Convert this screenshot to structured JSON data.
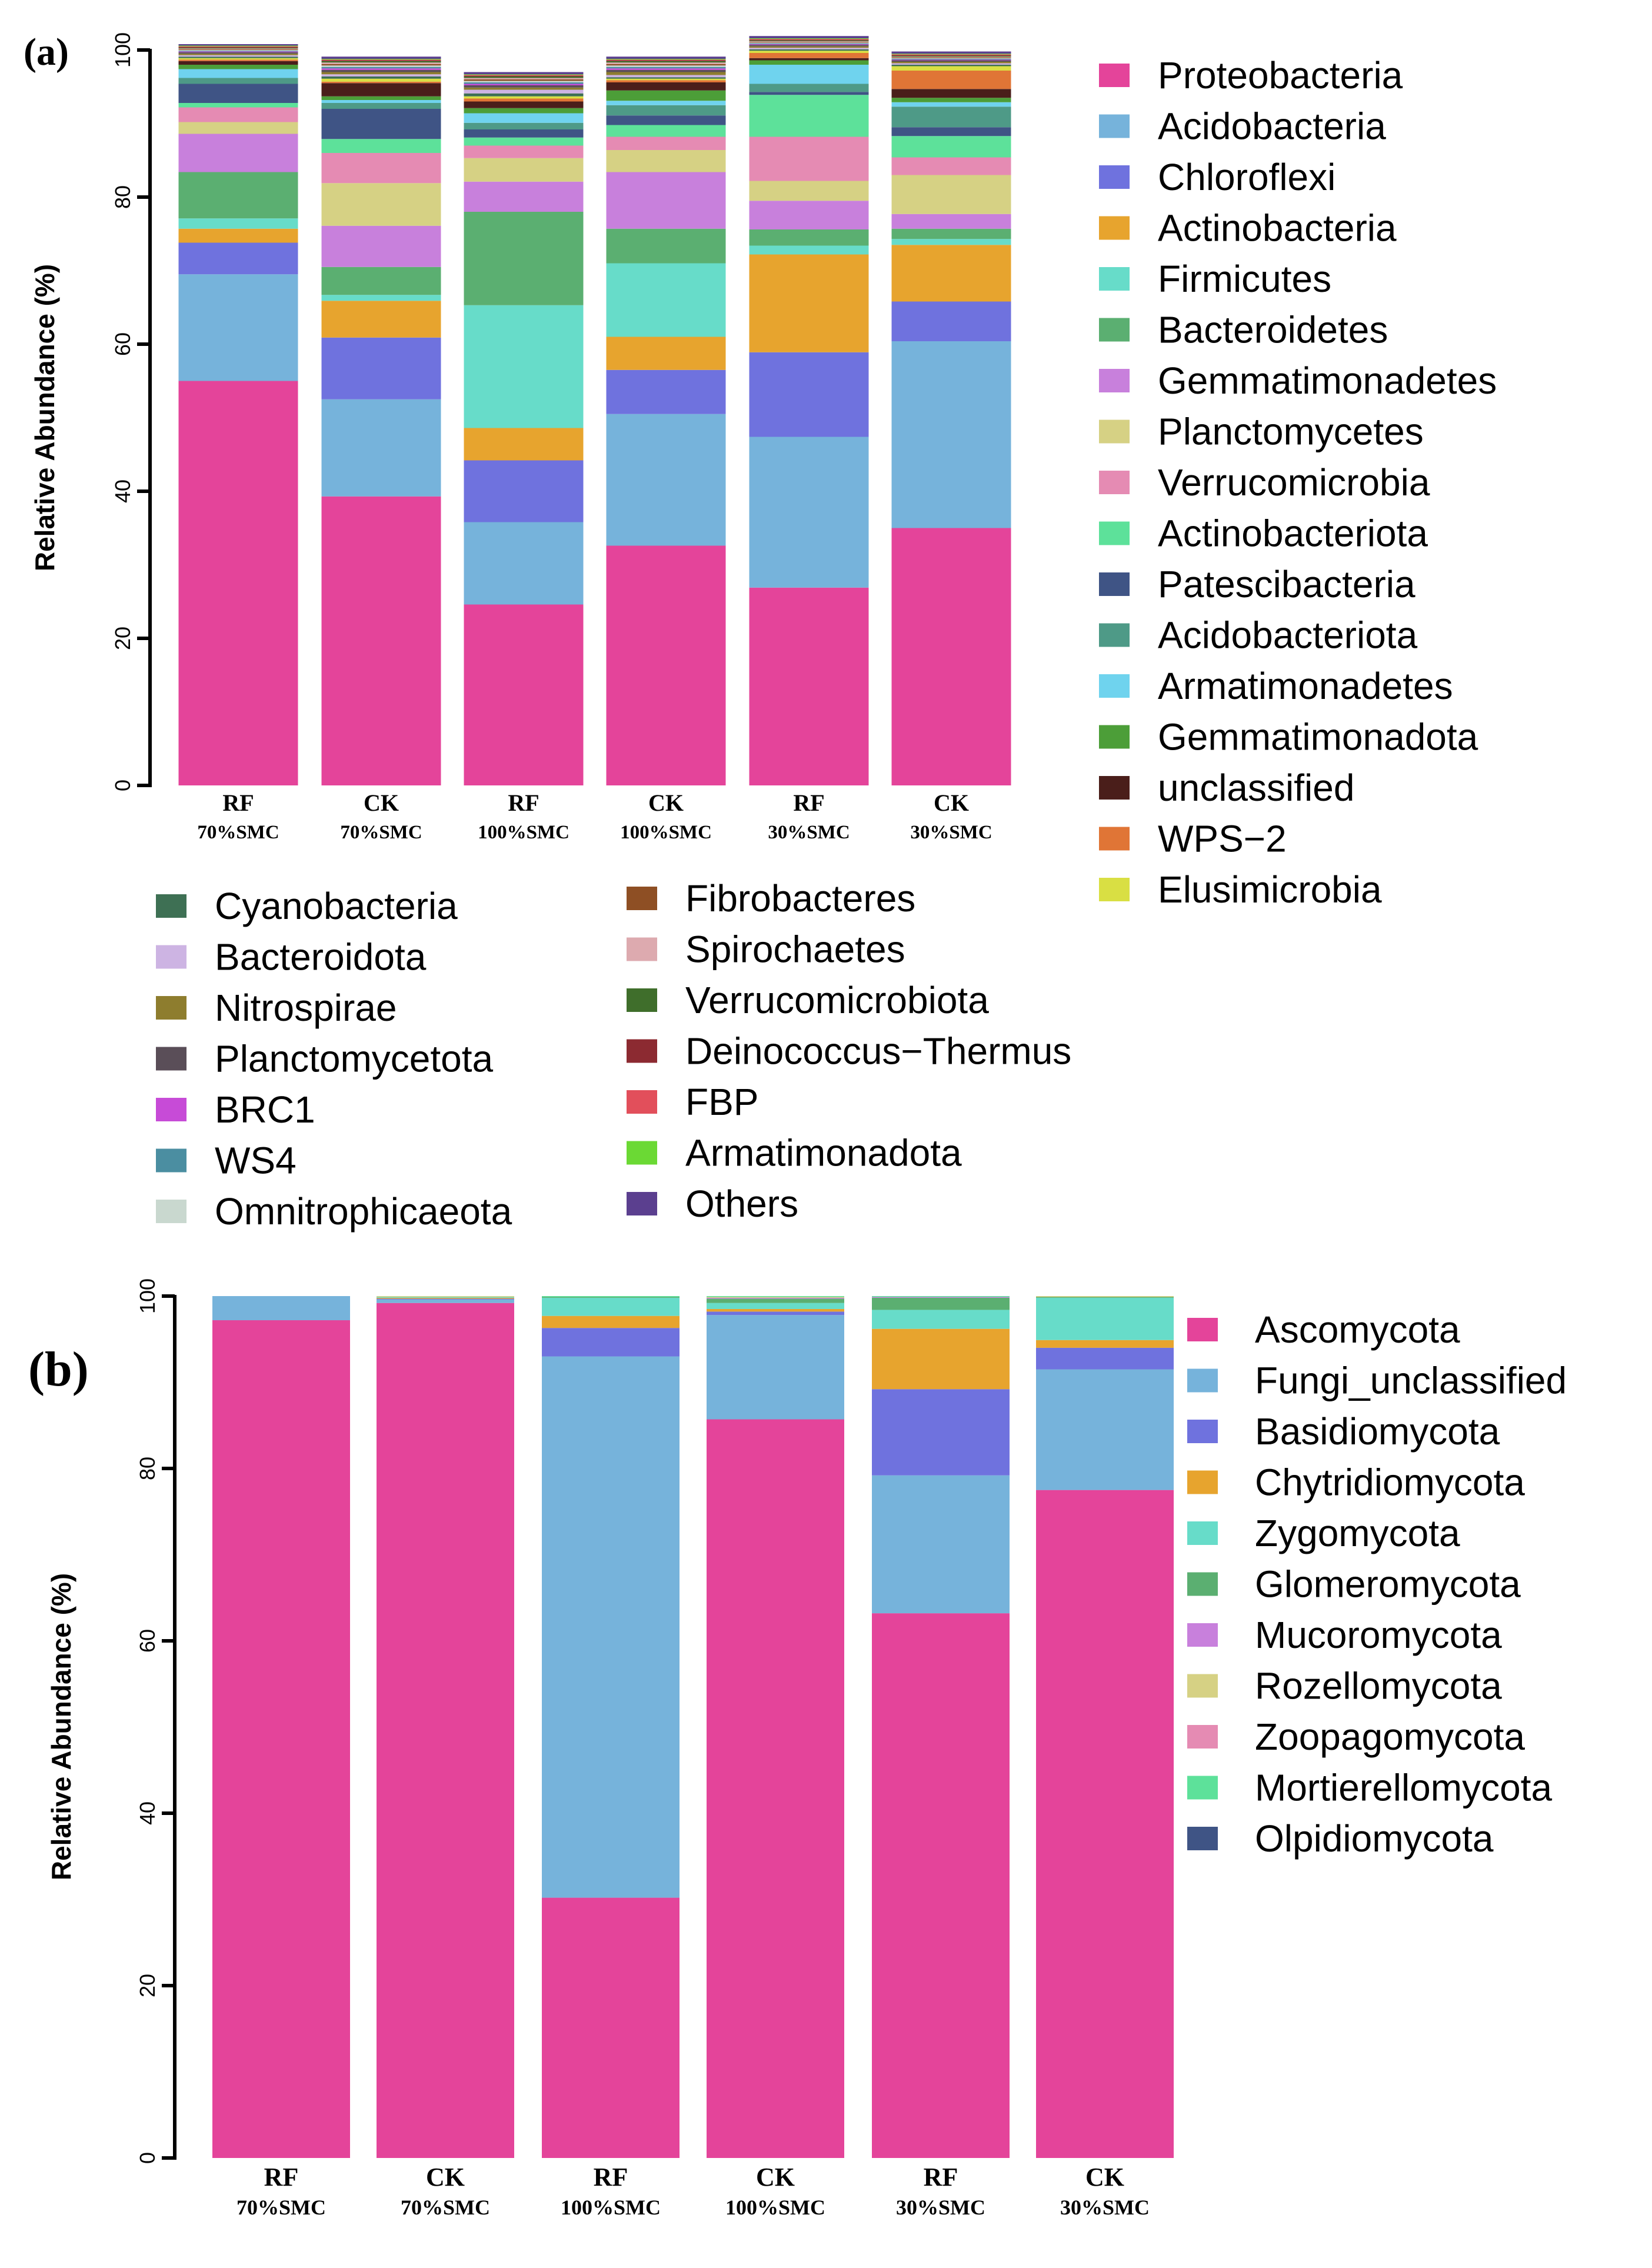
{
  "chart_data": [
    {
      "type": "bar",
      "stacked": true,
      "panel_label": "(a)",
      "ylabel": "Relative Abundance (%)",
      "ylim": [
        0,
        100
      ],
      "yticks": [
        0,
        20,
        40,
        60,
        80,
        100
      ],
      "categories": [
        [
          "RF",
          "70%SMC"
        ],
        [
          "CK",
          "70%SMC"
        ],
        [
          "RF",
          "100%SMC"
        ],
        [
          "CK",
          "100%SMC"
        ],
        [
          "RF",
          "30%SMC"
        ],
        [
          "CK",
          "30%SMC"
        ]
      ],
      "series": [
        {
          "name": "Proteobacteria",
          "color": "#E4449A",
          "values": [
            55.0,
            39.3,
            24.6,
            32.6,
            26.9,
            35.0
          ]
        },
        {
          "name": "Acidobacteria",
          "color": "#76B3DB",
          "values": [
            14.5,
            13.2,
            11.2,
            17.9,
            20.5,
            25.4
          ]
        },
        {
          "name": "Chloroflexi",
          "color": "#6F72DE",
          "values": [
            4.3,
            8.4,
            8.4,
            6.0,
            11.5,
            5.4
          ]
        },
        {
          "name": "Actinobacteria",
          "color": "#E7A42E",
          "values": [
            1.9,
            5.0,
            4.4,
            4.5,
            13.3,
            7.7
          ]
        },
        {
          "name": "Firmicutes",
          "color": "#67DCC9",
          "values": [
            1.4,
            0.8,
            16.7,
            10.0,
            1.2,
            0.8
          ]
        },
        {
          "name": "Bacteroidetes",
          "color": "#5BAF71",
          "values": [
            6.3,
            3.8,
            12.7,
            4.7,
            2.2,
            1.4
          ]
        },
        {
          "name": "Gemmatimonadetes",
          "color": "#C880DC",
          "values": [
            5.2,
            5.6,
            4.1,
            7.7,
            3.9,
            2.0
          ]
        },
        {
          "name": "Planctomycetes",
          "color": "#D6D184",
          "values": [
            1.6,
            5.8,
            3.2,
            3.0,
            2.7,
            5.3
          ]
        },
        {
          "name": "Verrucomicrobia",
          "color": "#E58BB3",
          "values": [
            2.0,
            4.1,
            1.7,
            1.8,
            6.0,
            2.4
          ]
        },
        {
          "name": "Actinobacteriota",
          "color": "#5DE19A",
          "values": [
            0.6,
            1.9,
            1.1,
            1.6,
            5.7,
            2.9
          ]
        },
        {
          "name": "Patescibacteria",
          "color": "#3F5485",
          "values": [
            2.6,
            4.1,
            1.1,
            1.3,
            0.4,
            1.2
          ]
        },
        {
          "name": "Acidobacteriota",
          "color": "#4E9A87",
          "values": [
            0.8,
            0.8,
            0.9,
            1.4,
            1.1,
            2.8
          ]
        },
        {
          "name": "Armatimonadetes",
          "color": "#6FD3EE",
          "values": [
            1.2,
            0.4,
            1.3,
            0.6,
            2.6,
            0.6
          ]
        },
        {
          "name": "Gemmatimonadota",
          "color": "#4C9E38",
          "values": [
            0.6,
            0.5,
            0.7,
            1.4,
            0.6,
            0.6
          ]
        },
        {
          "name": "unclassified",
          "color": "#4A1E1A",
          "values": [
            0.5,
            1.8,
            0.9,
            1.1,
            0.3,
            1.2
          ]
        },
        {
          "name": "WPS−2",
          "color": "#E07536",
          "values": [
            0.2,
            0.2,
            0.4,
            0.3,
            0.7,
            2.5
          ]
        },
        {
          "name": "Elusimicrobia",
          "color": "#D9DF43",
          "values": [
            0.2,
            0.4,
            0.3,
            0.2,
            0.3,
            0.6
          ]
        },
        {
          "name": "Cyanobacteria",
          "color": "#3E7054",
          "values": [
            0.2,
            0.3,
            0.4,
            0.2,
            0.2,
            0.2
          ]
        },
        {
          "name": "Bacteroidota",
          "color": "#CDB4E3",
          "values": [
            0.2,
            0.3,
            0.5,
            0.3,
            0.2,
            0.2
          ]
        },
        {
          "name": "Nitrospirae",
          "color": "#8E7D2E",
          "values": [
            0.2,
            0.3,
            0.3,
            0.4,
            0.2,
            0.2
          ]
        },
        {
          "name": "Planctomycetota",
          "color": "#5A4E58",
          "values": [
            0.2,
            0.3,
            0.3,
            0.3,
            0.2,
            0.2
          ]
        },
        {
          "name": "BRC1",
          "color": "#C74BD7",
          "values": [
            0.1,
            0.2,
            0.2,
            0.2,
            0.1,
            0.1
          ]
        },
        {
          "name": "WS4",
          "color": "#4B8EA1",
          "values": [
            0.1,
            0.2,
            0.2,
            0.2,
            0.1,
            0.1
          ]
        },
        {
          "name": "Omnitrophicaeota",
          "color": "#C9D8CF",
          "values": [
            0.1,
            0.2,
            0.2,
            0.2,
            0.1,
            0.1
          ]
        },
        {
          "name": "Fibrobacteres",
          "color": "#8E4F24",
          "values": [
            0.1,
            0.2,
            0.2,
            0.2,
            0.1,
            0.1
          ]
        },
        {
          "name": "Spirochaetes",
          "color": "#DDAAAF",
          "values": [
            0.1,
            0.2,
            0.2,
            0.2,
            0.1,
            0.1
          ]
        },
        {
          "name": "Verrucomicrobiota",
          "color": "#3F6E2B",
          "values": [
            0.1,
            0.2,
            0.2,
            0.2,
            0.1,
            0.1
          ]
        },
        {
          "name": "Deinococcus−Thermus",
          "color": "#8C2A31",
          "values": [
            0.1,
            0.1,
            0.1,
            0.1,
            0.1,
            0.1
          ]
        },
        {
          "name": "FBP",
          "color": "#E24F5B",
          "values": [
            0.1,
            0.1,
            0.1,
            0.1,
            0.1,
            0.1
          ]
        },
        {
          "name": "Armatimonadota",
          "color": "#6BD934",
          "values": [
            0.1,
            0.1,
            0.1,
            0.1,
            0.1,
            0.1
          ]
        },
        {
          "name": "Others",
          "color": "#5B3F8F",
          "values": [
            0.2,
            0.3,
            0.3,
            0.3,
            0.3,
            0.3
          ]
        }
      ]
    },
    {
      "type": "bar",
      "stacked": true,
      "panel_label": "(b)",
      "ylabel": "Relative Abundance (%)",
      "ylim": [
        0,
        100
      ],
      "yticks": [
        0,
        20,
        40,
        60,
        80,
        100
      ],
      "categories": [
        [
          "RF",
          "70%SMC"
        ],
        [
          "CK",
          "70%SMC"
        ],
        [
          "RF",
          "100%SMC"
        ],
        [
          "CK",
          "100%SMC"
        ],
        [
          "RF",
          "30%SMC"
        ],
        [
          "CK",
          "30%SMC"
        ]
      ],
      "series": [
        {
          "name": "Ascomycota",
          "color": "#E4449A",
          "values": [
            97.2,
            99.2,
            30.2,
            85.7,
            63.2,
            77.5
          ]
        },
        {
          "name": "Fungi_unclassified",
          "color": "#76B3DB",
          "values": [
            2.8,
            0.4,
            62.8,
            12.1,
            16.0,
            14.0
          ]
        },
        {
          "name": "Basidiomycota",
          "color": "#6F72DE",
          "values": [
            0.0,
            0.1,
            3.3,
            0.4,
            10.0,
            2.5
          ]
        },
        {
          "name": "Chytridiomycota",
          "color": "#E7A42E",
          "values": [
            0.0,
            0.1,
            1.4,
            0.3,
            7.0,
            0.9
          ]
        },
        {
          "name": "Zygomycota",
          "color": "#67DCC9",
          "values": [
            0.0,
            0.1,
            2.1,
            0.7,
            2.2,
            4.9
          ]
        },
        {
          "name": "Glomeromycota",
          "color": "#5BAF71",
          "values": [
            0.0,
            0.0,
            0.1,
            0.5,
            1.4,
            0.1
          ]
        },
        {
          "name": "Mucoromycota",
          "color": "#C880DC",
          "values": [
            0.0,
            0.0,
            0.0,
            0.1,
            0.1,
            0.0
          ]
        },
        {
          "name": "Rozellomycota",
          "color": "#D6D184",
          "values": [
            0.0,
            0.1,
            0.0,
            0.1,
            0.0,
            0.1
          ]
        },
        {
          "name": "Zoopagomycota",
          "color": "#E58BB3",
          "values": [
            0.0,
            0.0,
            0.0,
            0.0,
            0.0,
            0.0
          ]
        },
        {
          "name": "Mortierellomycota",
          "color": "#5DE19A",
          "values": [
            0.0,
            0.0,
            0.1,
            0.1,
            0.1,
            0.0
          ]
        },
        {
          "name": "Olpidiomycota",
          "color": "#3F5485",
          "values": [
            0.0,
            0.0,
            0.0,
            0.0,
            0.0,
            0.0
          ]
        }
      ]
    }
  ]
}
